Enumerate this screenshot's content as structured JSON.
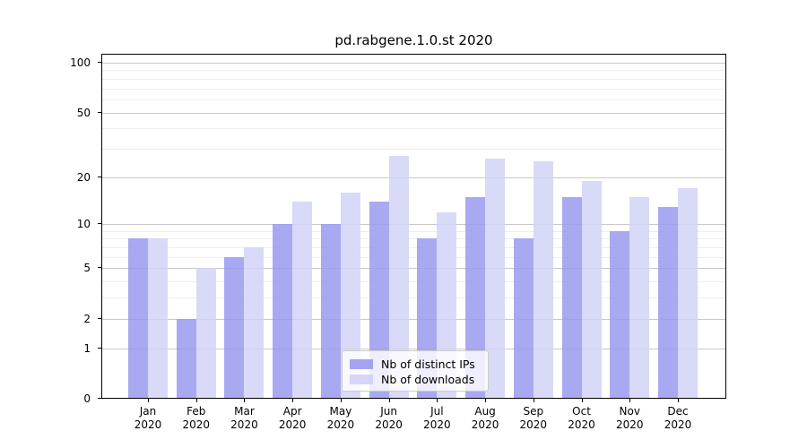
{
  "chart_data": {
    "type": "bar",
    "title": "pd.rabgene.1.0.st 2020",
    "categories": [
      "Jan",
      "Feb",
      "Mar",
      "Apr",
      "May",
      "Jun",
      "Jul",
      "Aug",
      "Sep",
      "Oct",
      "Nov",
      "Dec"
    ],
    "year_label": "2020",
    "series": [
      {
        "name": "Nb of distinct IPs",
        "color": "#9a9aef",
        "values": [
          8,
          2,
          6,
          10,
          10,
          14,
          8,
          15,
          8,
          15,
          9,
          13
        ]
      },
      {
        "name": "Nb of downloads",
        "color": "#d2d2f7",
        "values": [
          8,
          5,
          7,
          14,
          16,
          27,
          12,
          26,
          25,
          19,
          15,
          17
        ]
      }
    ],
    "y_axis": {
      "scale": "log10(1+x)",
      "major_ticks": [
        0,
        1,
        2,
        5,
        10,
        20,
        50,
        100
      ],
      "minor_gridlines": [
        3,
        4,
        6,
        7,
        8,
        9,
        30,
        40,
        60,
        70,
        80,
        90
      ],
      "ylim": [
        0,
        110
      ]
    },
    "x_axis": {
      "tick_label_lines": 2
    },
    "legend": {
      "position": "lower center",
      "entries": [
        "Nb of distinct IPs",
        "Nb of downloads"
      ]
    },
    "grid": {
      "major_color": "#c9c9c9",
      "minor_color": "#ededed"
    },
    "frame_color": "#000000",
    "background_color": "#ffffff"
  }
}
